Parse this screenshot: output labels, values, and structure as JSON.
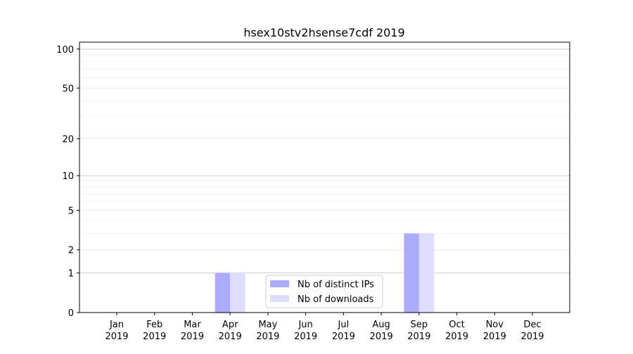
{
  "chart_data": {
    "type": "bar",
    "title": "hsex10stv2hsense7cdf 2019",
    "xlabel": "",
    "ylabel": "",
    "yscale": "symlog (log10(1+y))",
    "ylim": [
      0,
      113
    ],
    "yticks": [
      0,
      1,
      2,
      5,
      10,
      20,
      50,
      100
    ],
    "ytick_labels": [
      "0",
      "1",
      "2",
      "5",
      "10",
      "20",
      "50",
      "100"
    ],
    "minor_grid": [
      3,
      4,
      6,
      7,
      8,
      9,
      30,
      40,
      60,
      70,
      80,
      90
    ],
    "grid": true,
    "categories": [
      "Jan\n2019",
      "Feb\n2019",
      "Mar\n2019",
      "Apr\n2019",
      "May\n2019",
      "Jun\n2019",
      "Jul\n2019",
      "Aug\n2019",
      "Sep\n2019",
      "Oct\n2019",
      "Nov\n2019",
      "Dec\n2019"
    ],
    "series": [
      {
        "name": "Nb of distinct IPs",
        "color": "#aaaaff",
        "values": [
          0,
          0,
          0,
          1,
          0,
          0,
          0,
          0,
          3,
          0,
          0,
          0
        ]
      },
      {
        "name": "Nb of downloads",
        "color": "#ddddff",
        "values": [
          0,
          0,
          0,
          1,
          0,
          0,
          0,
          0,
          3,
          0,
          0,
          0
        ]
      }
    ],
    "legend": "lower-center"
  }
}
